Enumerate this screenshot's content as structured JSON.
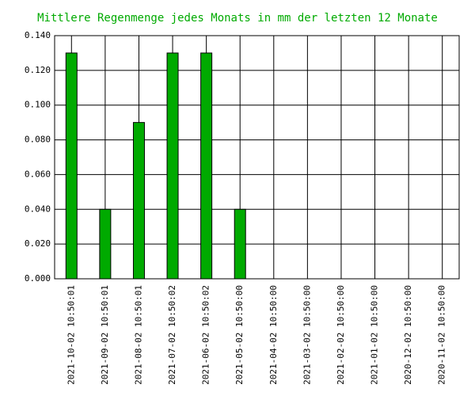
{
  "chart_data": {
    "type": "bar",
    "title": "Mittlere Regenmenge jedes Monats in mm der letzten 12 Monate",
    "categories": [
      "2021-10-02 10:50:01",
      "2021-09-02 10:50:01",
      "2021-08-02 10:50:01",
      "2021-07-02 10:50:02",
      "2021-06-02 10:50:02",
      "2021-05-02 10:50:00",
      "2021-04-02 10:50:00",
      "2021-03-02 10:50:00",
      "2021-02-02 10:50:00",
      "2021-01-02 10:50:00",
      "2020-12-02 10:50:00",
      "2020-11-02 10:50:00"
    ],
    "values": [
      0.13,
      0.04,
      0.09,
      0.13,
      0.13,
      0.04,
      0,
      0,
      0,
      0,
      0,
      0
    ],
    "color": "#00aa00",
    "ylim": [
      0,
      0.14
    ],
    "yticks": [
      {
        "value": 0,
        "label": "0.000"
      },
      {
        "value": 0.02,
        "label": "0.020"
      },
      {
        "value": 0.04,
        "label": "0.040"
      },
      {
        "value": 0.06,
        "label": "0.060"
      },
      {
        "value": 0.08,
        "label": "0.080"
      },
      {
        "value": 0.1,
        "label": "0.100"
      },
      {
        "value": 0.12,
        "label": "0.120"
      },
      {
        "value": 0.14,
        "label": "0.140"
      }
    ],
    "grid": true
  }
}
